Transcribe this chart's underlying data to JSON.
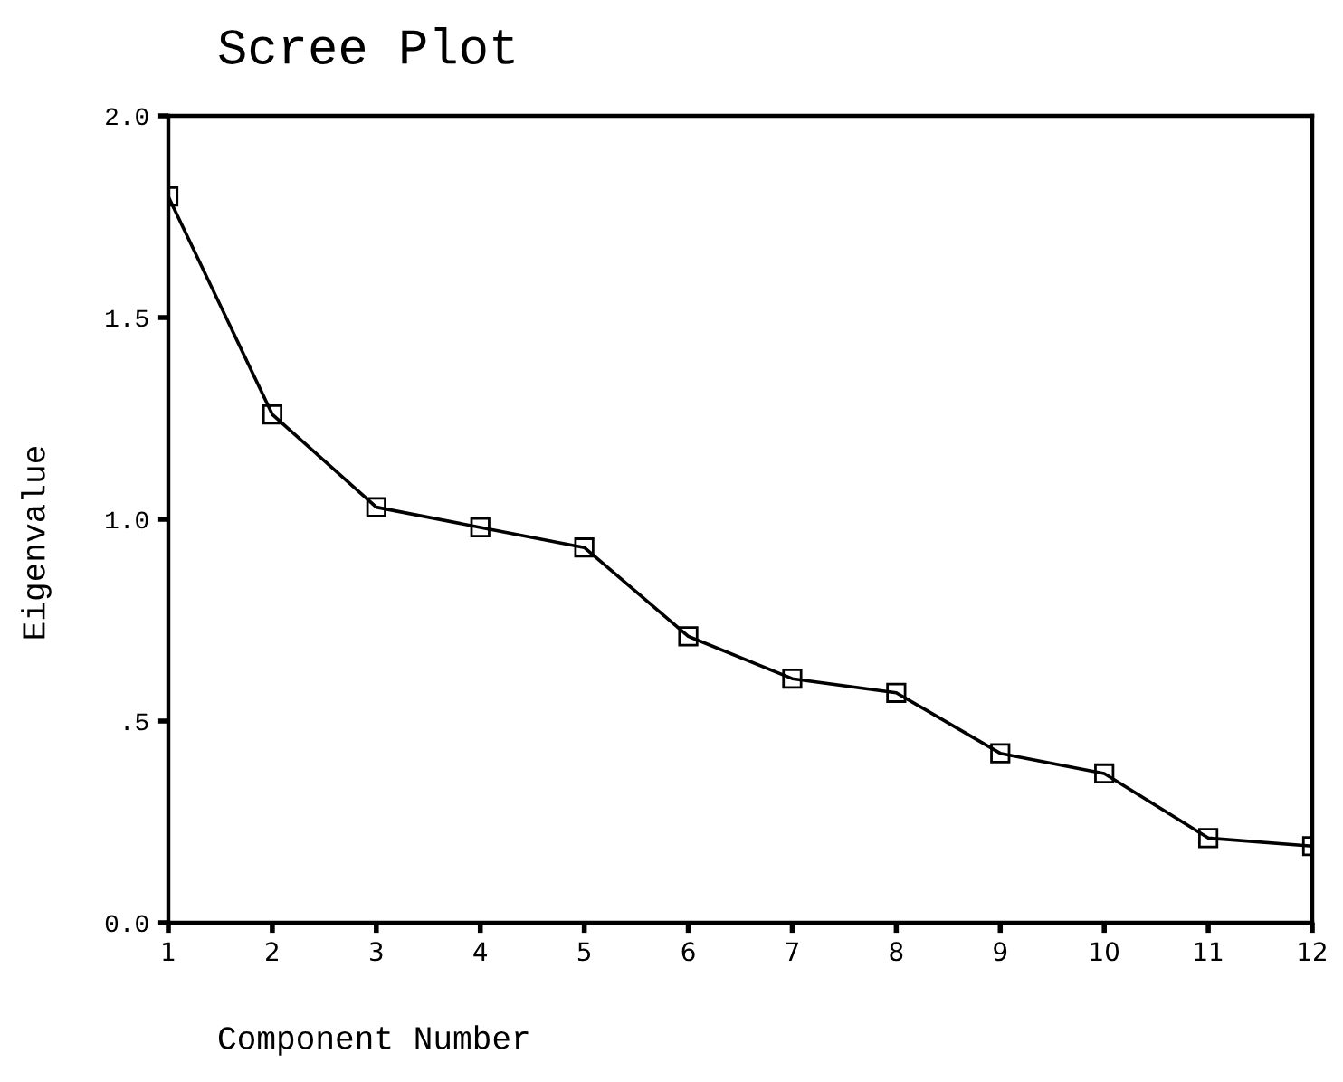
{
  "chart_data": {
    "type": "line",
    "title": "Scree Plot",
    "xlabel": "Component Number",
    "ylabel": "Eigenvalue",
    "x": [
      1,
      2,
      3,
      4,
      5,
      6,
      7,
      8,
      9,
      10,
      11,
      12
    ],
    "series": [
      {
        "color": "#000000",
        "values": [
          1.8,
          1.26,
          1.03,
          0.98,
          0.93,
          0.71,
          0.605,
          0.57,
          0.42,
          0.37,
          0.21,
          0.19
        ]
      }
    ],
    "xlim": [
      1,
      12
    ],
    "xticks": [
      1,
      2,
      3,
      4,
      5,
      6,
      7,
      8,
      9,
      10,
      11,
      12
    ],
    "ylim": [
      0,
      2
    ],
    "yticks": [
      {
        "value": 0,
        "label": "0.0"
      },
      {
        "value": 0.5,
        "label": ".5"
      },
      {
        "value": 1,
        "label": "1.0"
      },
      {
        "value": 1.5,
        "label": "1.5"
      },
      {
        "value": 2,
        "label": "2.0"
      }
    ],
    "marker": "square",
    "line_style": "solid",
    "grid": false,
    "legend": false
  }
}
